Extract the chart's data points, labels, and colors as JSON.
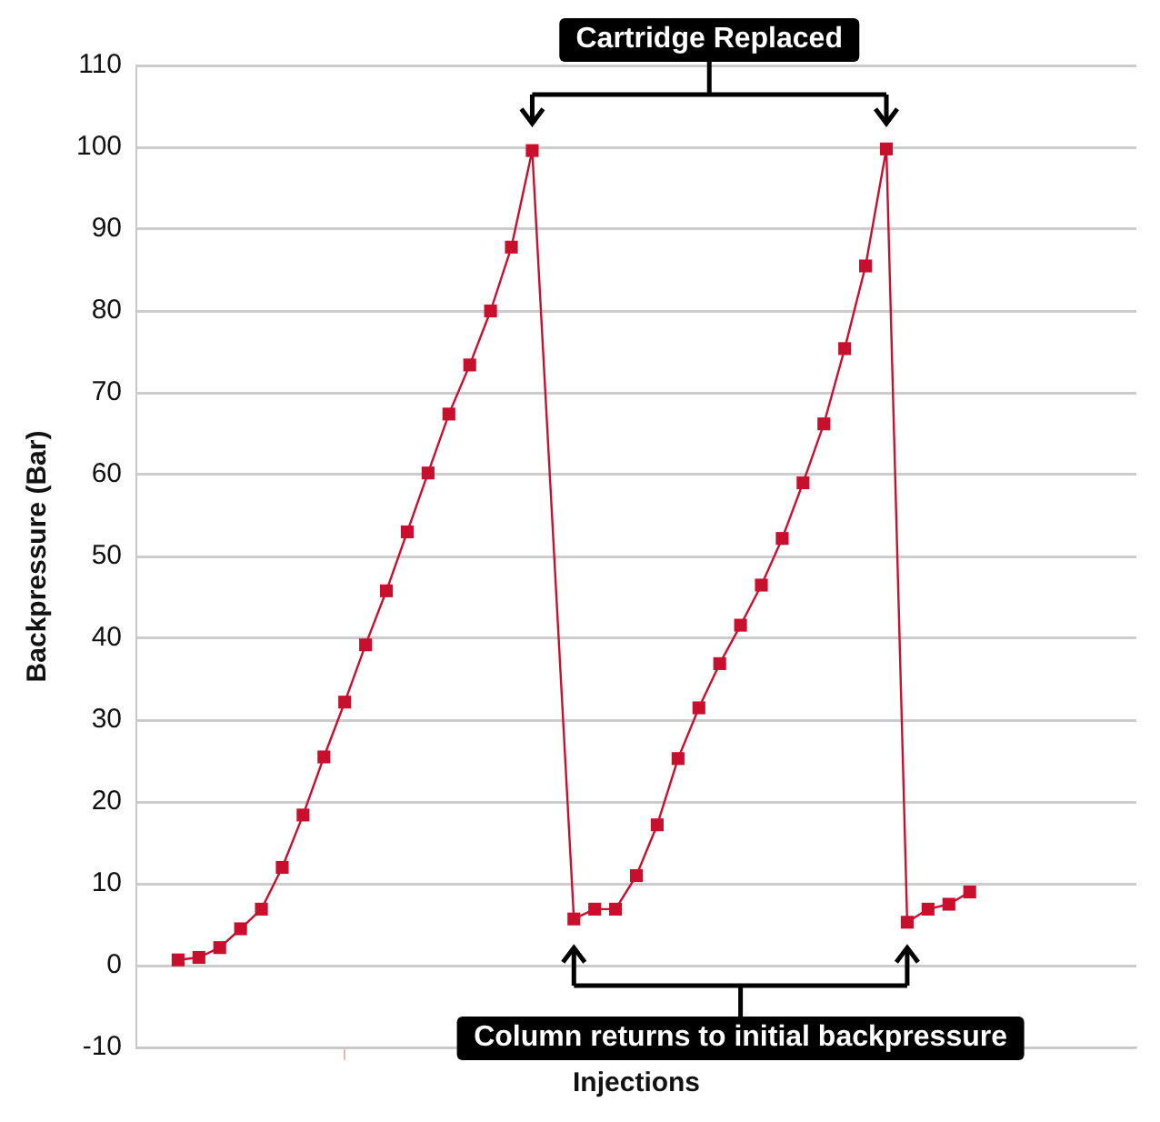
{
  "chart_data": {
    "type": "line",
    "xlabel": "Injections",
    "ylabel": "Backpressure (Bar)",
    "annotations": [
      "Cartridge Replaced",
      "Column returns to initial backpressure"
    ],
    "categories": [
      null,
      null,
      null,
      null,
      null,
      null,
      null,
      null,
      null,
      null,
      null,
      null,
      null,
      null,
      null,
      null,
      null,
      null,
      null,
      null,
      null,
      null,
      null,
      null,
      null,
      null,
      null,
      null,
      null,
      null,
      null,
      null,
      null,
      null,
      null,
      null,
      null,
      null,
      null,
      null,
      null,
      null,
      null,
      null,
      null,
      null,
      null,
      null,
      null
    ],
    "ylim": [
      -10,
      110
    ],
    "yticks": [
      -10,
      0,
      10,
      20,
      30,
      40,
      50,
      60,
      70,
      80,
      90,
      100,
      110
    ],
    "tick_labels": "y",
    "grid": "y",
    "marker": "square",
    "legend": false,
    "series": [
      {
        "color": "#c8102e",
        "values": [
          null,
          null,
          0.7,
          1.0,
          2.2,
          4.5,
          6.9,
          12,
          18.4,
          25.5,
          32.2,
          39.2,
          45.8,
          53,
          60.2,
          67.4,
          73.4,
          80,
          87.8,
          99.6,
          null,
          5.7,
          6.9,
          6.9,
          11,
          17.2,
          25.3,
          31.5,
          36.9,
          41.6,
          46.5,
          52.2,
          59,
          66.2,
          75.4,
          85.5,
          99.8,
          5.3,
          6.9,
          7.5,
          9.0,
          null,
          null,
          null,
          null,
          null,
          null,
          null,
          null
        ]
      }
    ]
  }
}
